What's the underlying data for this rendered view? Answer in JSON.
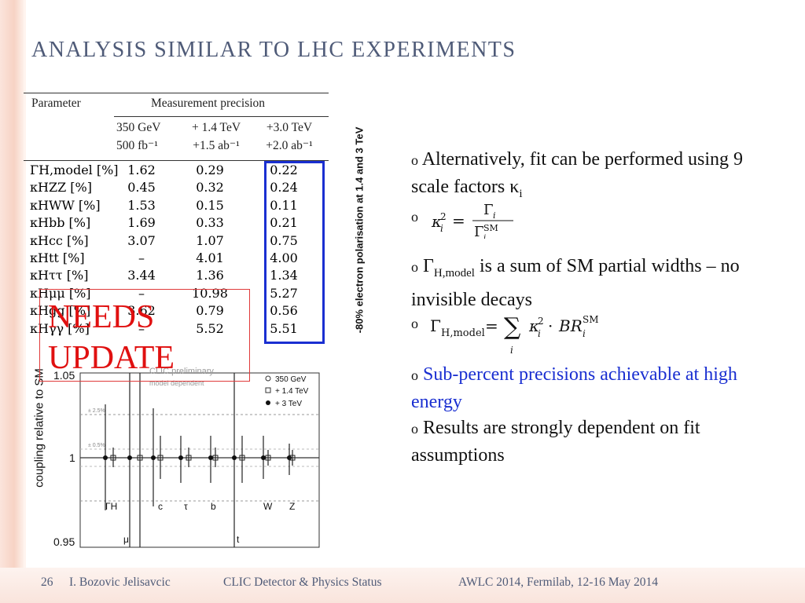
{
  "title": "ANALYSIS SIMILAR TO LHC EXPERIMENTS",
  "table": {
    "col_parameter": "Parameter",
    "col_precision": "Measurement precision",
    "energies": [
      "350 GeV",
      "+ 1.4 TeV",
      "+3.0 TeV"
    ],
    "lumis": [
      "500 fb⁻¹",
      "+1.5 ab⁻¹",
      "+2.0 ab⁻¹"
    ],
    "rows": [
      {
        "param": "ΓH,model [%]",
        "v": [
          "1.62",
          "0.29",
          "0.22"
        ]
      },
      {
        "param": "κHZZ [%]",
        "v": [
          "0.45",
          "0.32",
          "0.24"
        ]
      },
      {
        "param": "κHWW [%]",
        "v": [
          "1.53",
          "0.15",
          "0.11"
        ]
      },
      {
        "param": "κHbb [%]",
        "v": [
          "1.69",
          "0.33",
          "0.21"
        ]
      },
      {
        "param": "κHcc [%]",
        "v": [
          "3.07",
          "1.07",
          "0.75"
        ]
      },
      {
        "param": "κHtt [%]",
        "v": [
          "–",
          "4.01",
          "4.00"
        ]
      },
      {
        "param": "κHττ [%]",
        "v": [
          "3.44",
          "1.36",
          "1.34"
        ]
      },
      {
        "param": "κHμμ [%]",
        "v": [
          "–",
          "10.98",
          "5.27"
        ]
      },
      {
        "param": "κHgg [%]",
        "v": [
          "3.62",
          "0.79",
          "0.56"
        ]
      },
      {
        "param": "κHγγ [%]",
        "v": [
          "–",
          "5.52",
          "5.51"
        ]
      }
    ]
  },
  "side_caption": "-80% electron polarisation at 1.4 and 3 TeV",
  "chart": {
    "ylabel": "coupling relative to SM",
    "y_ticks": [
      "1.05",
      "1",
      "0.95"
    ],
    "ref_labels": [
      "± 2.5%",
      "± 0.5%"
    ],
    "preliminary": "CLIC preliminary",
    "model_note": "model dependent",
    "legend": [
      "350 GeV",
      "+ 1.4 TeV",
      "+ 3 TeV"
    ],
    "couplings_top": [
      "ΓH",
      "c",
      "τ",
      "b",
      "W",
      "Z"
    ],
    "couplings_bottom": [
      "μ",
      "t"
    ]
  },
  "stamp": [
    "NEEDS",
    "UPDATE"
  ],
  "bullets": {
    "b1": "Alternatively, fit can be performed using 9 scale factors κ",
    "b1_sub": "i",
    "b3_a": "Γ",
    "b3_sub": "H,model",
    "b3_b": " is a sum of SM partial widths – no invisible decays",
    "b5": "Sub-percent precisions achievable at high energy",
    "b6": "Results are strongly dependent on fit assumptions",
    "bullet_mark": "o"
  },
  "footer": {
    "page": "26",
    "author": "I. Bozovic Jelisavcic",
    "talk": "CLIC Detector & Physics Status",
    "event": "AWLC 2014, Fermilab, 12-16 May 2014"
  },
  "colors": {
    "title": "#4f5b78",
    "accent_blue": "#1a2fd1",
    "stamp_red": "#e01010"
  }
}
